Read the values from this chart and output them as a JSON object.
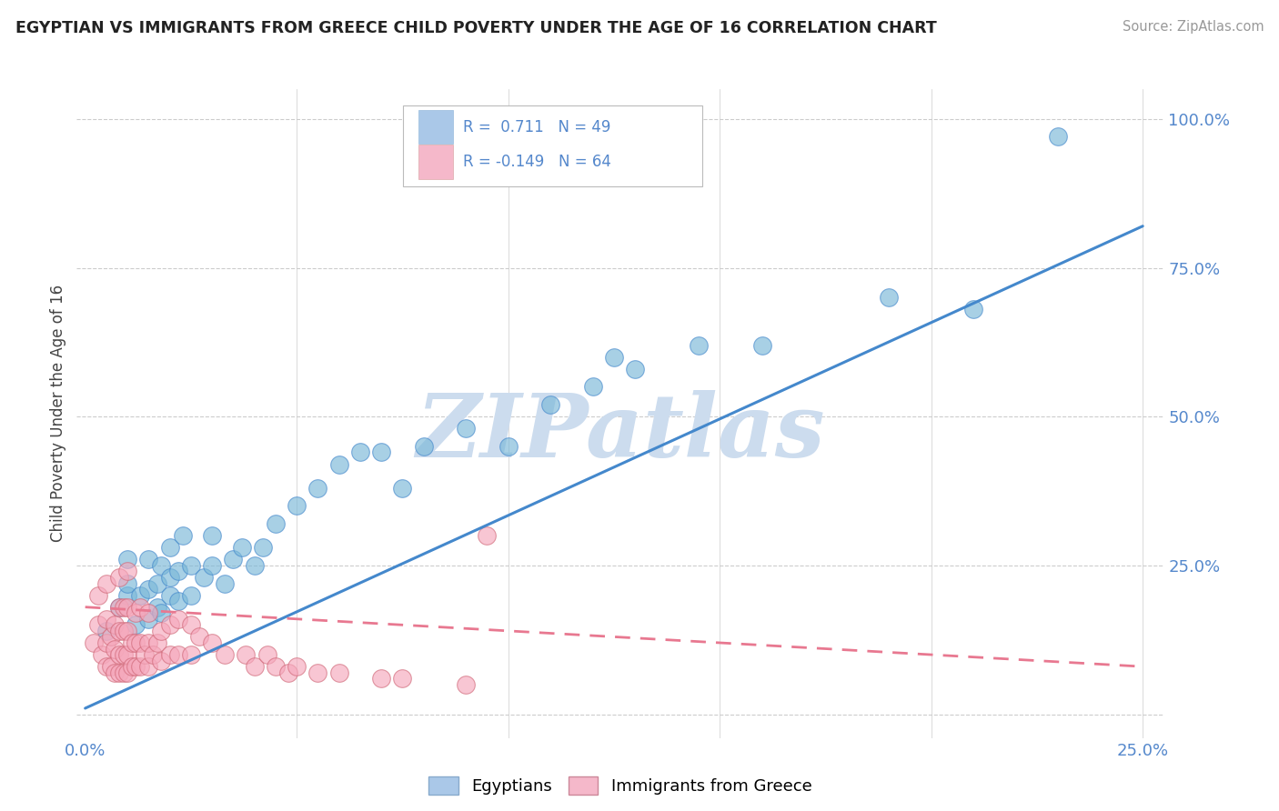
{
  "title": "EGYPTIAN VS IMMIGRANTS FROM GREECE CHILD POVERTY UNDER THE AGE OF 16 CORRELATION CHART",
  "source": "Source: ZipAtlas.com",
  "ylabel": "Child Poverty Under the Age of 16",
  "xlim": [
    -0.002,
    0.255
  ],
  "ylim": [
    -0.04,
    1.05
  ],
  "xticks": [
    0.0,
    0.05,
    0.1,
    0.15,
    0.2,
    0.25
  ],
  "yticks": [
    0.0,
    0.25,
    0.5,
    0.75,
    1.0
  ],
  "legend_entry1": "R =  0.711   N = 49",
  "legend_entry2": "R = -0.149   N = 64",
  "legend_color1": "#aac8e8",
  "legend_color2": "#f5b8ca",
  "watermark": "ZIPatlas",
  "watermark_color": "#ccdcee",
  "blue_color": "#7ab8d8",
  "pink_color": "#f5a8bc",
  "blue_line_color": "#4488cc",
  "pink_line_color": "#e87890",
  "background_color": "#ffffff",
  "blue_scatter_x": [
    0.005,
    0.008,
    0.01,
    0.01,
    0.01,
    0.012,
    0.013,
    0.015,
    0.015,
    0.015,
    0.017,
    0.017,
    0.018,
    0.018,
    0.02,
    0.02,
    0.02,
    0.022,
    0.022,
    0.023,
    0.025,
    0.025,
    0.028,
    0.03,
    0.03,
    0.033,
    0.035,
    0.037,
    0.04,
    0.042,
    0.045,
    0.05,
    0.055,
    0.06,
    0.065,
    0.07,
    0.075,
    0.08,
    0.09,
    0.1,
    0.11,
    0.12,
    0.125,
    0.13,
    0.145,
    0.16,
    0.19,
    0.21,
    0.23
  ],
  "blue_scatter_y": [
    0.14,
    0.18,
    0.2,
    0.22,
    0.26,
    0.15,
    0.2,
    0.16,
    0.21,
    0.26,
    0.18,
    0.22,
    0.17,
    0.25,
    0.2,
    0.23,
    0.28,
    0.19,
    0.24,
    0.3,
    0.2,
    0.25,
    0.23,
    0.25,
    0.3,
    0.22,
    0.26,
    0.28,
    0.25,
    0.28,
    0.32,
    0.35,
    0.38,
    0.42,
    0.44,
    0.44,
    0.38,
    0.45,
    0.48,
    0.45,
    0.52,
    0.55,
    0.6,
    0.58,
    0.62,
    0.62,
    0.7,
    0.68,
    0.97
  ],
  "pink_scatter_x": [
    0.002,
    0.003,
    0.003,
    0.004,
    0.005,
    0.005,
    0.005,
    0.005,
    0.006,
    0.006,
    0.007,
    0.007,
    0.007,
    0.008,
    0.008,
    0.008,
    0.008,
    0.008,
    0.009,
    0.009,
    0.009,
    0.009,
    0.01,
    0.01,
    0.01,
    0.01,
    0.01,
    0.011,
    0.011,
    0.012,
    0.012,
    0.012,
    0.013,
    0.013,
    0.013,
    0.014,
    0.015,
    0.015,
    0.015,
    0.016,
    0.017,
    0.018,
    0.018,
    0.02,
    0.02,
    0.022,
    0.022,
    0.025,
    0.025,
    0.027,
    0.03,
    0.033,
    0.038,
    0.04,
    0.043,
    0.045,
    0.048,
    0.05,
    0.055,
    0.06,
    0.07,
    0.075,
    0.09,
    0.095
  ],
  "pink_scatter_y": [
    0.12,
    0.15,
    0.2,
    0.1,
    0.08,
    0.12,
    0.16,
    0.22,
    0.08,
    0.13,
    0.07,
    0.11,
    0.15,
    0.07,
    0.1,
    0.14,
    0.18,
    0.23,
    0.07,
    0.1,
    0.14,
    0.18,
    0.07,
    0.1,
    0.14,
    0.18,
    0.24,
    0.08,
    0.12,
    0.08,
    0.12,
    0.17,
    0.08,
    0.12,
    0.18,
    0.1,
    0.08,
    0.12,
    0.17,
    0.1,
    0.12,
    0.09,
    0.14,
    0.1,
    0.15,
    0.1,
    0.16,
    0.1,
    0.15,
    0.13,
    0.12,
    0.1,
    0.1,
    0.08,
    0.1,
    0.08,
    0.07,
    0.08,
    0.07,
    0.07,
    0.06,
    0.06,
    0.05,
    0.3
  ],
  "blue_regline": [
    [
      0.0,
      0.25
    ],
    [
      0.01,
      0.82
    ]
  ],
  "pink_regline": [
    [
      0.0,
      0.25
    ],
    [
      0.18,
      0.08
    ]
  ]
}
